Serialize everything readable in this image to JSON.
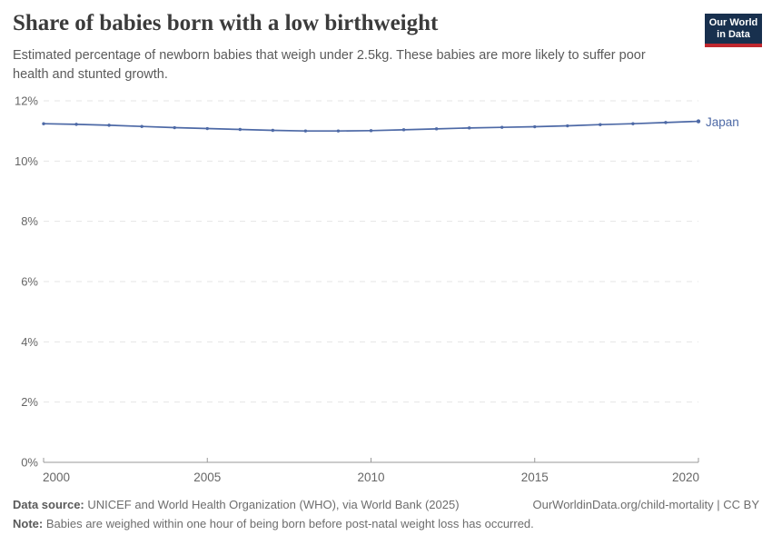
{
  "header": {
    "title": "Share of babies born with a low birthweight",
    "subtitle": "Estimated percentage of newborn babies that weigh under 2.5kg. These babies are more likely to suffer poor health and stunted growth.",
    "logo": {
      "line1": "Our World",
      "line2": "in Data"
    }
  },
  "chart_data": {
    "type": "line",
    "title": "Share of babies born with a low birthweight",
    "xlabel": "",
    "ylabel": "",
    "x": [
      2000,
      2001,
      2002,
      2003,
      2004,
      2005,
      2006,
      2007,
      2008,
      2009,
      2010,
      2011,
      2012,
      2013,
      2014,
      2015,
      2016,
      2017,
      2018,
      2019,
      2020
    ],
    "series": [
      {
        "name": "Japan",
        "color": "#4d69a6",
        "values": [
          11.24,
          11.22,
          11.19,
          11.15,
          11.11,
          11.08,
          11.05,
          11.02,
          11.0,
          11.0,
          11.01,
          11.04,
          11.07,
          11.1,
          11.12,
          11.14,
          11.17,
          11.21,
          11.24,
          11.28,
          11.32
        ]
      }
    ],
    "ylim": [
      0,
      12
    ],
    "yticks": [
      {
        "value": 0,
        "label": "0%"
      },
      {
        "value": 2,
        "label": "2%"
      },
      {
        "value": 4,
        "label": "4%"
      },
      {
        "value": 6,
        "label": "6%"
      },
      {
        "value": 8,
        "label": "8%"
      },
      {
        "value": 10,
        "label": "10%"
      },
      {
        "value": 12,
        "label": "12%"
      }
    ],
    "xticks": [
      {
        "value": 2000,
        "label": "2000"
      },
      {
        "value": 2005,
        "label": "2005"
      },
      {
        "value": 2010,
        "label": "2010"
      },
      {
        "value": 2015,
        "label": "2015"
      },
      {
        "value": 2020,
        "label": "2020"
      }
    ],
    "grid": "horizontal-dashed",
    "legend": "end-of-line-label"
  },
  "footer": {
    "source_label": "Data source:",
    "source_text": " UNICEF and World Health Organization (WHO), via World Bank (2025)",
    "link": "OurWorldinData.org/child-mortality | CC BY",
    "note_label": "Note:",
    "note_text": " Babies are weighed within one hour of being born before post-natal weight loss has occurred."
  },
  "colors": {
    "series_blue": "#4d69a6",
    "logo_navy": "#18304e",
    "logo_red": "#c0272e",
    "gridline": "#e5e5e5",
    "axis": "#999999",
    "axis_text": "#666666"
  }
}
